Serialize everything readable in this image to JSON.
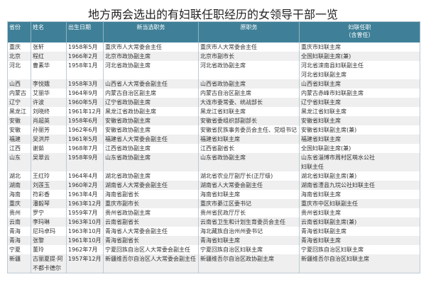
{
  "title": "地方两会选出的有妇联任职经历的女领导干部一览",
  "headers": [
    "省份",
    "姓名",
    "出生日期",
    "新当选职务",
    "原职务",
    "妇联任职",
    "（含曾任）"
  ],
  "rows": [
    {
      "p": "重庆",
      "n": [
        "张轩"
      ],
      "b": "1958年5月",
      "new": "重庆市人大常委会主任",
      "old": "重庆市人大常委会主任",
      "fl": [
        "重庆市妇联主席"
      ]
    },
    {
      "p": "北京",
      "n": [
        "程红"
      ],
      "b": "1966年2月",
      "new": "北京市政协副主席",
      "old": "北京市副市长",
      "fl": [
        "全国妇联副主席(兼)"
      ]
    },
    {
      "p": "河北",
      "n": [
        "曹素华"
      ],
      "b": "1958年1月",
      "new": "河北省政协副主席",
      "old": "河北省政协副主席",
      "fl": [
        "河北省滦南县妇联副主任",
        "河北省妇联副主席"
      ]
    },
    {
      "p": "山西",
      "n": [
        "李悦娥"
      ],
      "b": "1958年3月",
      "new": "山西省人大常委会副主任",
      "old": "山西省政协副主席",
      "fl": [
        "山西省妇联主席"
      ]
    },
    {
      "p": "内蒙古",
      "n": [
        "艾丽华"
      ],
      "b": "1964年9月",
      "new": "内蒙古自治区副主席",
      "old": "内蒙古自治区副主席",
      "fl": [
        "内蒙古赤峰市妇联副主席"
      ]
    },
    {
      "p": "辽宁",
      "n": [
        "许波"
      ],
      "b": "1960年5月",
      "new": "辽宁省政协副主席",
      "old": "大连市委常委、统战部长",
      "fl": [
        "辽宁省妇联主席"
      ]
    },
    {
      "p": "黑龙江",
      "n": [
        "刘晓终"
      ],
      "b": "1961年12月",
      "new": "黑龙江省政协副主席",
      "old": "黑龙江省妇联主席",
      "fl": [
        "黑龙江省妇联主席"
      ]
    },
    {
      "p": "安徽",
      "n": [
        "肖超英"
      ],
      "b": "1958年6月",
      "new": "安徽省政协副主席",
      "old": "安徽省委组织部副部长",
      "fl": [
        "安徽省妇联主席"
      ]
    },
    {
      "p": "安徽",
      "n": [
        "孙丽芳"
      ],
      "b": "1962年6月",
      "new": "安徽省政协副主席",
      "old": "安徽省民族事务委员会主任、党组书记",
      "fl": [
        "安徽省妇联副主席(兼)"
      ]
    },
    {
      "p": "福建",
      "n": [
        "吴洪芹"
      ],
      "b": "1961年5月",
      "new": "福建省人大常委会副主任",
      "old": "福建省妇联主席",
      "fl": [
        "福建省妇联主席"
      ]
    },
    {
      "p": "江西",
      "n": [
        "谢茹"
      ],
      "b": "1968年7月",
      "new": "江西省政协副主席",
      "old": "江西省副省长",
      "fl": [
        "全国妇联副主席(兼)"
      ]
    },
    {
      "p": "山东",
      "n": [
        "吴翠云"
      ],
      "b": "1958年9月",
      "new": "山东省政协副主席",
      "old": "山东省政协副主席",
      "fl": [
        "山东省淄博市周村区萌水公社",
        "妇联主任"
      ]
    },
    {
      "p": "湖北",
      "n": [
        "王红玲"
      ],
      "b": "1964年4月",
      "new": "湖北省政协副主席",
      "old": "湖北省农业厅副厅长(正厅级)",
      "fl": [
        "湖北省妇联副主席(兼)"
      ]
    },
    {
      "p": "湖南",
      "n": [
        "刘莲玉"
      ],
      "b": "1960年2月",
      "new": "湖南省人大常委会副主任",
      "old": "湖南省人大常委会副主任",
      "fl": [
        "湖南省澧县九垸公社妇联主任"
      ]
    },
    {
      "p": "海南",
      "n": [
        "符彩香"
      ],
      "b": "1963年4月",
      "new": "海南省副省长",
      "old": "海南省妇联主席",
      "fl": [
        "海南省妇联主席"
      ]
    },
    {
      "p": "重庆",
      "n": [
        "潘毅琴"
      ],
      "b": "1963年12月",
      "new": "重庆市副市长",
      "old": "重庆市綦江区委书记",
      "fl": [
        "重庆市中区妇联副主任"
      ]
    },
    {
      "p": "贵州",
      "n": [
        "罗宁"
      ],
      "b": "1959年7月",
      "new": "贵州省政协副主席",
      "old": "贵州省民政厅厅长",
      "fl": [
        "贵州省妇联主席"
      ]
    },
    {
      "p": "云南",
      "n": [
        "李玛琳"
      ],
      "b": "1963年10月",
      "new": "云南省副省长",
      "old": "云南省卫生和计划生育委员会主任",
      "fl": [
        "云南省妇联副主席(兼)"
      ]
    },
    {
      "p": "青海",
      "n": [
        "尼玛卓玛"
      ],
      "b": "1963年10月",
      "new": "青海省人大常委会副主任",
      "old": "海北藏族自治州州委书记",
      "fl": [
        "青海省妇联副主席"
      ]
    },
    {
      "p": "青海",
      "n": [
        "张黎"
      ],
      "b": "1961年10月",
      "new": "青海省副省长",
      "old": "青海省妇联主席",
      "fl": [
        "青海省妇联主席"
      ]
    },
    {
      "p": "宁夏",
      "n": [
        "董玲"
      ],
      "b": "1962年7月",
      "new": "宁夏回族自治区人大常委会副主任",
      "old": "宁夏回族自治区妇联主席",
      "fl": [
        "宁夏回族自治区妇联主席"
      ]
    },
    {
      "p": "新疆",
      "n": [
        "古丽夏提·阿",
        "不都卡德尔"
      ],
      "b": "1957年12月",
      "new": "新疆维吾尔自治区人大常委会副主任",
      "old": "新疆维吾尔自治区政协副主席",
      "fl": [
        "新疆维吾尔自治区妇联主席"
      ]
    }
  ],
  "colors": {
    "header_bg": "#3f8098",
    "header_text": "#ffffff",
    "alt_row": "#efefef"
  }
}
